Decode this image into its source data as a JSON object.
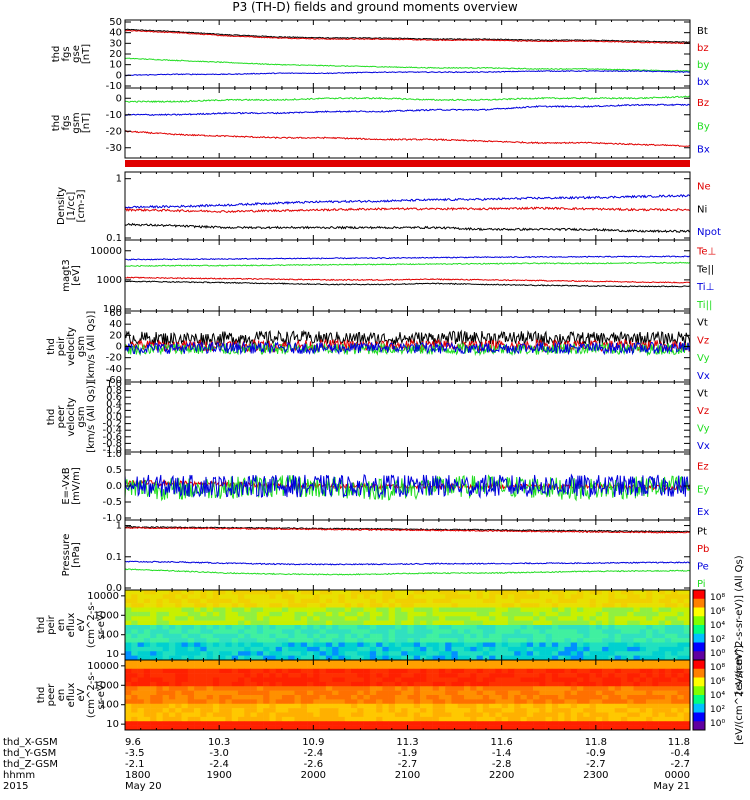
{
  "title": "P3 (TH-D) fields and ground moments overview",
  "colors": {
    "black": "#000000",
    "red": "#e00000",
    "green": "#22dd22",
    "blue": "#0000dd"
  },
  "chart_data": [
    {
      "type": "line",
      "ylabel": [
        "thd",
        "fgs",
        "gse",
        "[nT]"
      ],
      "ylim": [
        -10,
        50
      ],
      "yticks": [
        50,
        40,
        30,
        20,
        10,
        0,
        -10
      ],
      "series": [
        {
          "name": "Bt",
          "color": "black",
          "values": [
            43,
            41,
            38,
            36,
            35,
            35,
            34,
            34,
            33,
            33,
            32,
            31
          ]
        },
        {
          "name": "bz",
          "color": "red",
          "values": [
            42,
            40,
            37,
            35,
            34,
            34,
            33,
            33,
            32,
            32,
            31,
            30
          ]
        },
        {
          "name": "by",
          "color": "green",
          "values": [
            16,
            14,
            12,
            10,
            9,
            8,
            7,
            7,
            6,
            6,
            5,
            4
          ]
        },
        {
          "name": "bx",
          "color": "blue",
          "values": [
            0,
            1,
            1,
            2,
            2,
            3,
            3,
            3,
            4,
            4,
            4,
            3
          ]
        }
      ]
    },
    {
      "type": "line",
      "ylabel": [
        "thd",
        "fgs",
        "gsm",
        "[nT]"
      ],
      "ylim": [
        -35,
        5
      ],
      "yticks": [
        0,
        -10,
        -20,
        -30
      ],
      "series": [
        {
          "name": "Bz",
          "color": "red",
          "values": [
            -20,
            -22,
            -23,
            -24,
            -24,
            -25,
            -25,
            -26,
            -27,
            -27,
            -28,
            -29
          ]
        },
        {
          "name": "By",
          "color": "green",
          "values": [
            -2,
            -2,
            -1,
            -1,
            0,
            0,
            -1,
            -1,
            0,
            0,
            0,
            1
          ]
        },
        {
          "name": "Bx",
          "color": "blue",
          "values": [
            -10,
            -10,
            -9,
            -9,
            -8,
            -8,
            -7,
            -7,
            -5,
            -5,
            -4,
            -4
          ]
        }
      ]
    },
    {
      "type": "line",
      "log": true,
      "ylabel": [
        "Density",
        "[1/cc]",
        "[cm-3]"
      ],
      "ylim": [
        0.1,
        1.2
      ],
      "yticks": [
        1.0,
        0.1
      ],
      "series": [
        {
          "name": "Ne",
          "color": "red",
          "values": [
            0.3,
            0.29,
            0.28,
            0.29,
            0.3,
            0.31,
            0.31,
            0.31,
            0.32,
            0.31,
            0.3,
            0.3
          ]
        },
        {
          "name": "Ni",
          "color": "black",
          "values": [
            0.17,
            0.16,
            0.15,
            0.15,
            0.15,
            0.15,
            0.15,
            0.14,
            0.14,
            0.14,
            0.13,
            0.13
          ]
        },
        {
          "name": "Npot",
          "color": "blue",
          "values": [
            0.33,
            0.34,
            0.36,
            0.39,
            0.41,
            0.42,
            0.44,
            0.45,
            0.47,
            0.48,
            0.5,
            0.52
          ]
        }
      ]
    },
    {
      "type": "line",
      "log": true,
      "ylabel": [
        "magt3",
        "[eV]"
      ],
      "ylim": [
        100,
        20000
      ],
      "yticks": [
        10000,
        1000,
        100
      ],
      "series": [
        {
          "name": "Te⊥",
          "color": "red",
          "values": [
            1200,
            1150,
            1100,
            1050,
            1000,
            1000,
            1050,
            1000,
            950,
            900,
            850,
            800
          ]
        },
        {
          "name": "Te||",
          "color": "black",
          "values": [
            900,
            850,
            800,
            750,
            700,
            700,
            750,
            700,
            650,
            620,
            600,
            600
          ]
        },
        {
          "name": "Ti⊥",
          "color": "blue",
          "values": [
            5000,
            5100,
            5200,
            5400,
            5500,
            5600,
            5800,
            6000,
            6100,
            6200,
            6300,
            6400
          ]
        },
        {
          "name": "Ti||",
          "color": "green",
          "values": [
            3000,
            3100,
            3100,
            3200,
            3300,
            3400,
            3500,
            3600,
            3700,
            3700,
            3800,
            3900
          ]
        }
      ]
    },
    {
      "type": "line",
      "ylabel": [
        "thd",
        "peir",
        "velocity",
        "gsm",
        "[km/s (All Qs)]"
      ],
      "ylim": [
        -60,
        60
      ],
      "yticks": [
        60,
        40,
        20,
        0,
        -20,
        -40,
        -60
      ],
      "series": [
        {
          "name": "Vt",
          "color": "black",
          "values": [
            15,
            14,
            15,
            16,
            15,
            14,
            15,
            16,
            15,
            14,
            15,
            15
          ]
        },
        {
          "name": "Vz",
          "color": "red",
          "values": [
            2,
            1,
            2,
            1,
            2,
            1,
            2,
            1,
            2,
            1,
            2,
            1
          ]
        },
        {
          "name": "Vy",
          "color": "green",
          "values": [
            -5,
            -4,
            -5,
            -4,
            -5,
            -4,
            -5,
            -4,
            -5,
            -4,
            -5,
            -4
          ]
        },
        {
          "name": "Vx",
          "color": "blue",
          "values": [
            -3,
            -3,
            -2,
            -3,
            -3,
            -2,
            -3,
            -3,
            -2,
            -3,
            -3,
            -2
          ]
        }
      ]
    },
    {
      "type": "line",
      "ylabel": [
        "thd",
        "peer",
        "velocity",
        "gsm",
        "[km/s (All Qs)]"
      ],
      "ylim": [
        -1,
        1
      ],
      "yticks": [
        1.0,
        0.8,
        0.6,
        0.4,
        0.2,
        0.0,
        -0.2,
        -0.4,
        -0.6,
        -0.8,
        -1.0
      ],
      "series": [
        {
          "name": "Vt",
          "color": "black",
          "values": []
        },
        {
          "name": "Vz",
          "color": "red",
          "values": []
        },
        {
          "name": "Vy",
          "color": "green",
          "values": []
        },
        {
          "name": "Vx",
          "color": "blue",
          "values": []
        }
      ]
    },
    {
      "type": "line",
      "ylabel": [
        "E=-VxB",
        "[mV/m]"
      ],
      "ylim": [
        -1,
        1
      ],
      "yticks": [
        1.0,
        0.5,
        0.0,
        -0.5,
        -1.0
      ],
      "series": [
        {
          "name": "Ez",
          "color": "red",
          "values": [
            0.1,
            0.08,
            0.05,
            0.02,
            0.0,
            -0.02,
            0.0,
            0.0,
            -0.02,
            0.0,
            -0.03,
            -0.05
          ]
        },
        {
          "name": "Ey",
          "color": "green",
          "values": [
            -0.05,
            -0.1,
            -0.05,
            0.0,
            -0.05,
            -0.1,
            -0.05,
            0.0,
            -0.05,
            -0.1,
            -0.05,
            0.0
          ]
        },
        {
          "name": "Ex",
          "color": "blue",
          "values": [
            0,
            0,
            0,
            0,
            0,
            0,
            0,
            0,
            0,
            0,
            0,
            0
          ]
        }
      ]
    },
    {
      "type": "line",
      "log": true,
      "ylabel": [
        "Pressure",
        "[nPa]"
      ],
      "ylim": [
        0.01,
        1.3
      ],
      "yticks": [
        1.0,
        0.1,
        0.01
      ],
      "series": [
        {
          "name": "Pt",
          "color": "black",
          "values": [
            0.9,
            0.88,
            0.85,
            0.83,
            0.8,
            0.78,
            0.75,
            0.73,
            0.7,
            0.68,
            0.66,
            0.64
          ]
        },
        {
          "name": "Pb",
          "color": "red",
          "values": [
            0.85,
            0.82,
            0.8,
            0.78,
            0.75,
            0.73,
            0.7,
            0.68,
            0.65,
            0.63,
            0.61,
            0.6
          ]
        },
        {
          "name": "Pe",
          "color": "blue",
          "values": [
            0.07,
            0.068,
            0.062,
            0.058,
            0.057,
            0.058,
            0.06,
            0.06,
            0.062,
            0.063,
            0.065,
            0.066
          ]
        },
        {
          "name": "Pi",
          "color": "green",
          "values": [
            0.04,
            0.035,
            0.03,
            0.028,
            0.027,
            0.028,
            0.03,
            0.03,
            0.032,
            0.034,
            0.035,
            0.036
          ]
        }
      ]
    },
    {
      "type": "heatmap",
      "ylabel": [
        "thd",
        "peir",
        "en",
        "eflux",
        "eV",
        "(cm^2-s-",
        "sr-eV)"
      ],
      "yticks": [
        10000,
        1000,
        100,
        10
      ],
      "colorbar": {
        "label": "[eV/(cm^2-s-sr-eV)] (All Qs)",
        "ticks": [
          "10⁸",
          "10⁶",
          "10⁴",
          "10²",
          "10⁰"
        ]
      }
    },
    {
      "type": "heatmap",
      "ylabel": [
        "thd",
        "peer",
        "en",
        "eflux",
        "eV",
        "(cm^2-s-",
        "sr-eV)"
      ],
      "yticks": [
        10000,
        1000,
        100,
        10
      ],
      "colorbar": {
        "label": "[eV/(cm^2-s-sr-eV)]",
        "ticks": [
          "10⁸",
          "10⁶",
          "10⁴",
          "10²",
          "10⁰"
        ]
      }
    }
  ],
  "xaxis": {
    "rows": [
      {
        "label": "thd_X-GSM",
        "values": [
          "9.6",
          "10.3",
          "10.9",
          "11.3",
          "11.6",
          "11.8",
          "11.8"
        ]
      },
      {
        "label": "thd_Y-GSM",
        "values": [
          "-3.5",
          "-3.0",
          "-2.4",
          "-1.9",
          "-1.4",
          "-0.9",
          "-0.4"
        ]
      },
      {
        "label": "thd_Z-GSM",
        "values": [
          "-2.1",
          "-2.4",
          "-2.6",
          "-2.7",
          "-2.8",
          "-2.7",
          "-2.7"
        ]
      },
      {
        "label": "hhmm",
        "values": [
          "1800",
          "1900",
          "2000",
          "2100",
          "2200",
          "2300",
          "0000"
        ]
      }
    ],
    "date_row": {
      "label": "2015",
      "start": "May 20",
      "end": "May 21"
    }
  }
}
